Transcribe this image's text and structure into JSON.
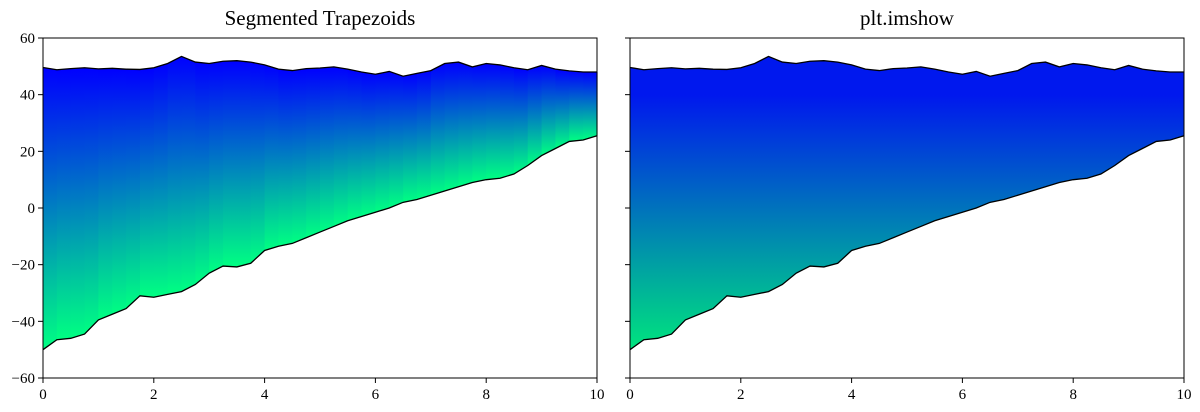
{
  "chart_data": [
    {
      "type": "area",
      "title": "Segmented Trapezoids",
      "xlabel": "",
      "ylabel": "",
      "xlim": [
        0,
        10
      ],
      "ylim": [
        -60,
        60
      ],
      "xticks": [
        "0",
        "2",
        "4",
        "6",
        "8",
        "10"
      ],
      "yticks": [
        "−60",
        "−40",
        "−20",
        "0",
        "20",
        "40",
        "60"
      ],
      "gradient": "per-segment: blue at upper boundary to green at lower boundary",
      "colors": {
        "top": "#0000ff",
        "bottom": "#00ff80"
      },
      "grid": false
    },
    {
      "type": "area",
      "title": "plt.imshow",
      "xlabel": "",
      "ylabel": "",
      "xlim": [
        0,
        10
      ],
      "ylim": [
        -60,
        60
      ],
      "xticks": [
        "0",
        "2",
        "4",
        "6",
        "8",
        "10"
      ],
      "yticks": [
        "",
        "",
        "",
        "",
        "",
        "",
        ""
      ],
      "gradient": "global vertical: blue at y=50 to green at y=-50",
      "colors": {
        "top": "#0000ff",
        "bottom": "#00ff80"
      },
      "grid": false
    }
  ],
  "series": {
    "x": [
      0,
      0.25,
      0.5,
      0.75,
      1,
      1.25,
      1.5,
      1.75,
      2,
      2.25,
      2.5,
      2.75,
      3,
      3.25,
      3.5,
      3.75,
      4,
      4.25,
      4.5,
      4.75,
      5,
      5.25,
      5.5,
      5.75,
      6,
      6.25,
      6.5,
      6.75,
      7,
      7.25,
      7.5,
      7.75,
      8,
      8.25,
      8.5,
      8.75,
      9,
      9.25,
      9.5,
      9.75,
      10
    ],
    "upper": [
      49.6,
      48.8,
      49.2,
      49.5,
      49.1,
      49.3,
      49.0,
      48.9,
      49.5,
      51.0,
      53.5,
      51.5,
      51.0,
      51.8,
      52.0,
      51.5,
      50.5,
      49.0,
      48.5,
      49.2,
      49.4,
      49.8,
      49.0,
      48.0,
      47.2,
      48.2,
      46.5,
      47.5,
      48.5,
      51.0,
      51.5,
      49.8,
      51.0,
      50.5,
      49.5,
      48.8,
      50.3,
      49.0,
      48.4,
      48.0,
      48.0
    ],
    "lower": [
      -50.0,
      -46.5,
      -46.0,
      -44.5,
      -39.5,
      -37.5,
      -35.5,
      -31.0,
      -31.5,
      -30.5,
      -29.5,
      -27.0,
      -23.0,
      -20.5,
      -20.8,
      -19.5,
      -15.0,
      -13.5,
      -12.5,
      -10.5,
      -8.5,
      -6.5,
      -4.5,
      -3.0,
      -1.5,
      0.0,
      2.0,
      3.0,
      4.5,
      6.0,
      7.5,
      9.0,
      10.0,
      10.5,
      12.0,
      15.0,
      18.5,
      21.0,
      23.5,
      24.0,
      25.5
    ]
  }
}
